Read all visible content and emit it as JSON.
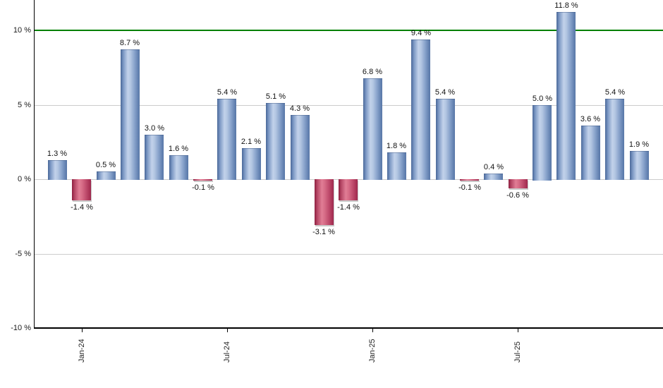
{
  "chart_data": {
    "type": "bar",
    "title": "",
    "unit": "%",
    "grid": true,
    "ylim": [
      -10,
      11.2
    ],
    "legend_position": "none",
    "points": [
      {
        "value": 1.3,
        "label": "1.3 %"
      },
      {
        "value": -1.4,
        "label": "-1.4 %"
      },
      {
        "value": 0.5,
        "label": "0.5 %"
      },
      {
        "value": 8.7,
        "label": "8.7 %"
      },
      {
        "value": 3.0,
        "label": "3.0 %"
      },
      {
        "value": 1.6,
        "label": "1.6 %"
      },
      {
        "value": -0.1,
        "label": "-0.1 %"
      },
      {
        "value": 5.4,
        "label": "5.4 %"
      },
      {
        "value": 2.1,
        "label": "2.1 %"
      },
      {
        "value": 5.1,
        "label": "5.1 %"
      },
      {
        "value": 4.3,
        "label": "4.3 %"
      },
      {
        "value": -3.1,
        "label": "-3.1 %"
      },
      {
        "value": -1.4,
        "label": "-1.4 %"
      },
      {
        "value": 6.8,
        "label": "6.8 %"
      },
      {
        "value": 1.8,
        "label": "1.8 %"
      },
      {
        "value": 9.4,
        "label": "9.4 %"
      },
      {
        "value": 5.4,
        "label": "5.4 %"
      },
      {
        "value": -0.1,
        "label": "-0.1 %"
      },
      {
        "value": 0.4,
        "label": "0.4 %"
      },
      {
        "value": -0.6,
        "label": "-0.6 %"
      },
      {
        "value": 5.0,
        "label": "5.0 %"
      },
      {
        "value": 11.8,
        "label": "11.8 %"
      },
      {
        "value": 3.6,
        "label": "3.6 %"
      },
      {
        "value": 5.4,
        "label": "5.4 %"
      },
      {
        "value": 1.9,
        "label": "1.9 %"
      }
    ],
    "x_ticks": [
      {
        "slot": 1,
        "label": "Jan-24"
      },
      {
        "slot": 7,
        "label": "Jul-24"
      },
      {
        "slot": 13,
        "label": "Jan-25"
      },
      {
        "slot": 19,
        "label": "Jul-25"
      }
    ],
    "y_ticks": [
      {
        "value": 10,
        "label": "10 %"
      },
      {
        "value": 5,
        "label": "5 %"
      },
      {
        "value": 0,
        "label": "0 %"
      },
      {
        "value": -5,
        "label": "-5 %"
      },
      {
        "value": -10,
        "label": "-10 %"
      }
    ],
    "threshold_line": {
      "value": 10,
      "color": "#008000"
    },
    "colors": {
      "positive_bar": "#8aa4cc",
      "negative_bar": "#c25070",
      "gridline": "#cccccc",
      "axis": "#000000",
      "value_label": "#111111"
    }
  }
}
